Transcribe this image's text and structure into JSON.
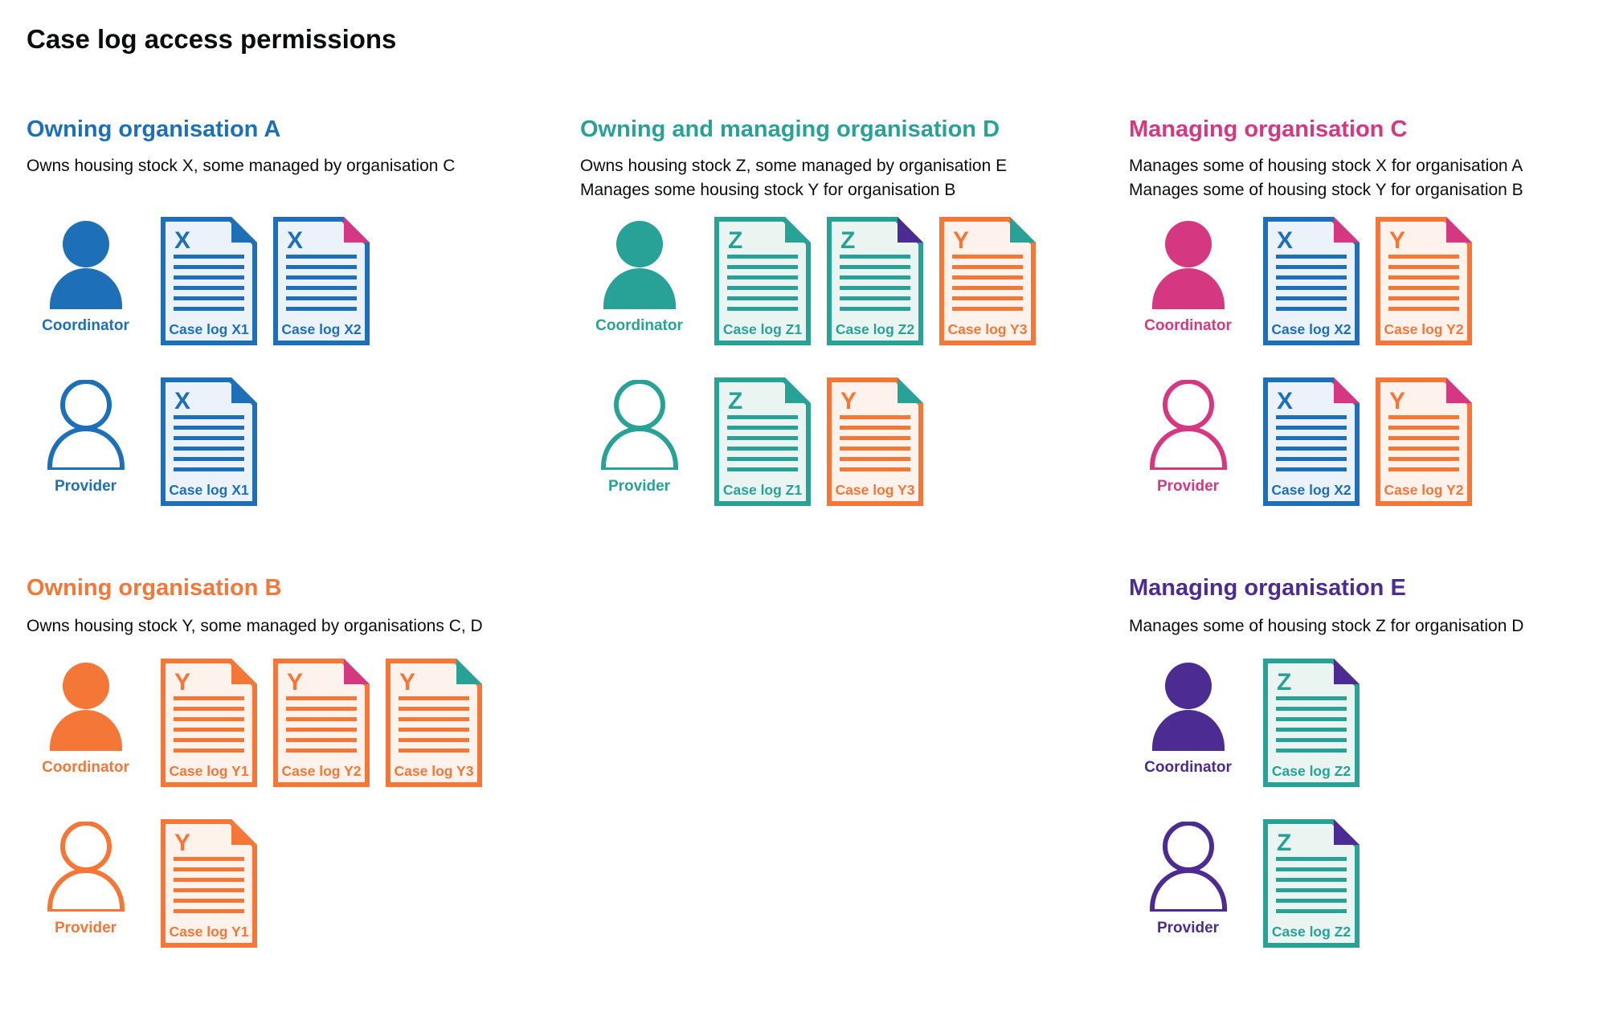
{
  "title": "Case log access permissions",
  "colors": {
    "blue": "#1d70b8",
    "teal": "#28a197",
    "orange": "#f47738",
    "pink": "#d53880",
    "purple": "#4c2c92",
    "text": "#0b0c0c",
    "tints": {
      "blue": "#ebf2fa",
      "teal": "#eaf5f2",
      "orange": "#fef3ec"
    }
  },
  "sections": [
    {
      "heading": "Owning organisation A",
      "color": "blue",
      "desc_lines": [
        "Owns housing stock X, some managed by organisation C"
      ],
      "rows": [
        {
          "role": "Coordinator",
          "docs": [
            {
              "letter": "X",
              "label": "Case log X1",
              "color": "blue",
              "fold": "blue"
            },
            {
              "letter": "X",
              "label": "Case log X2",
              "color": "blue",
              "fold": "pink"
            }
          ]
        },
        {
          "role": "Provider",
          "docs": [
            {
              "letter": "X",
              "label": "Case log X1",
              "color": "blue",
              "fold": "blue"
            }
          ]
        }
      ]
    },
    {
      "heading": "Owning and managing organisation D",
      "color": "teal",
      "desc_lines": [
        "Owns housing stock Z, some managed by organisation E",
        "Manages some housing stock Y for organisation B"
      ],
      "rows": [
        {
          "role": "Coordinator",
          "docs": [
            {
              "letter": "Z",
              "label": "Case log Z1",
              "color": "teal",
              "fold": "teal"
            },
            {
              "letter": "Z",
              "label": "Case log Z2",
              "color": "teal",
              "fold": "purple"
            },
            {
              "letter": "Y",
              "label": "Case log Y3",
              "color": "orange",
              "fold": "teal"
            }
          ]
        },
        {
          "role": "Provider",
          "docs": [
            {
              "letter": "Z",
              "label": "Case log Z1",
              "color": "teal",
              "fold": "teal"
            },
            {
              "letter": "Y",
              "label": "Case log Y3",
              "color": "orange",
              "fold": "teal"
            }
          ]
        }
      ]
    },
    {
      "heading": "Managing organisation C",
      "color": "pink",
      "desc_lines": [
        "Manages some of housing stock X for organisation A",
        "Manages some of housing stock Y for organisation B"
      ],
      "rows": [
        {
          "role": "Coordinator",
          "docs": [
            {
              "letter": "X",
              "label": "Case log X2",
              "color": "blue",
              "fold": "pink"
            },
            {
              "letter": "Y",
              "label": "Case log Y2",
              "color": "orange",
              "fold": "pink"
            }
          ]
        },
        {
          "role": "Provider",
          "docs": [
            {
              "letter": "X",
              "label": "Case log X2",
              "color": "blue",
              "fold": "pink"
            },
            {
              "letter": "Y",
              "label": "Case log Y2",
              "color": "orange",
              "fold": "pink"
            }
          ]
        }
      ]
    },
    {
      "heading": "Owning organisation B",
      "color": "orange",
      "desc_lines": [
        "Owns housing stock Y, some managed by organisations C, D"
      ],
      "rows": [
        {
          "role": "Coordinator",
          "docs": [
            {
              "letter": "Y",
              "label": "Case log Y1",
              "color": "orange",
              "fold": "orange"
            },
            {
              "letter": "Y",
              "label": "Case log Y2",
              "color": "orange",
              "fold": "pink"
            },
            {
              "letter": "Y",
              "label": "Case log Y3",
              "color": "orange",
              "fold": "teal"
            }
          ]
        },
        {
          "role": "Provider",
          "docs": [
            {
              "letter": "Y",
              "label": "Case log Y1",
              "color": "orange",
              "fold": "orange"
            }
          ]
        }
      ]
    },
    {
      "heading": "Managing organisation E",
      "color": "purple",
      "desc_lines": [
        "Manages some of housing stock Z for organisation D"
      ],
      "rows": [
        {
          "role": "Coordinator",
          "docs": [
            {
              "letter": "Z",
              "label": "Case log Z2",
              "color": "teal",
              "fold": "purple"
            }
          ]
        },
        {
          "role": "Provider",
          "docs": [
            {
              "letter": "Z",
              "label": "Case log Z2",
              "color": "teal",
              "fold": "purple"
            }
          ]
        }
      ]
    }
  ]
}
